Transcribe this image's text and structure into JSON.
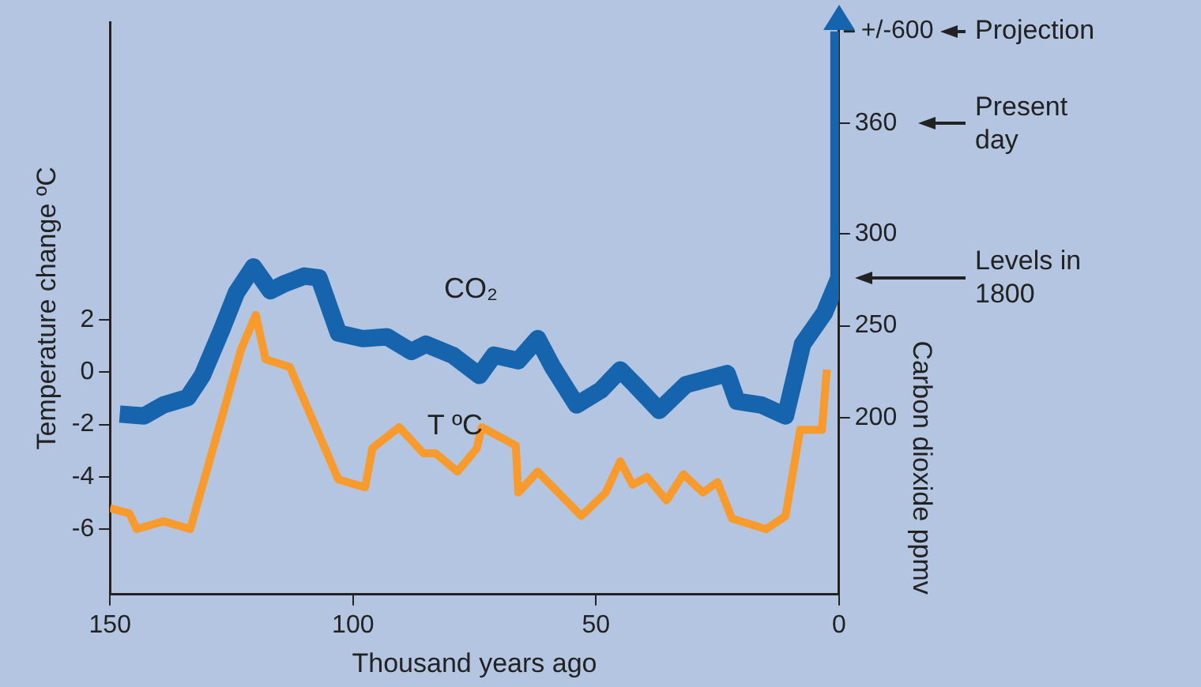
{
  "chart_data": {
    "type": "line",
    "xlabel": "Thousand years ago",
    "ylabel": "Temperature change ºC",
    "y2label": "Carbon dioxide ppmv",
    "xlim": [
      150,
      0
    ],
    "xticks": [
      150,
      100,
      50,
      0
    ],
    "ylim": [
      -8.5,
      13.4
    ],
    "yticks": [
      -6,
      -4,
      -2,
      0,
      2
    ],
    "y2lim": [
      104,
      415
    ],
    "y2ticks": [
      200,
      250,
      300,
      360
    ],
    "series": [
      {
        "name": "CO₂",
        "type": "line",
        "axis": "y2",
        "color": "#1764ae",
        "x": [
          148,
          143,
          139,
          134,
          131,
          127,
          124,
          120.5,
          117,
          114,
          110,
          107,
          103,
          98,
          93,
          88,
          85,
          79.5,
          74,
          71,
          66,
          62,
          59,
          54,
          49,
          45,
          42,
          37,
          31.5,
          23,
          21,
          16,
          11,
          7.5,
          3,
          0,
          0
        ],
        "values": [
          202,
          201,
          207,
          211,
          223,
          248,
          268,
          282,
          269,
          273,
          277,
          276,
          246,
          243,
          244,
          236,
          240,
          234,
          223,
          234,
          231,
          243,
          228,
          207,
          215,
          226,
          218,
          204,
          218,
          224,
          209,
          207,
          201,
          240,
          257,
          276,
          410
        ]
      },
      {
        "name": "T ºC",
        "type": "line",
        "axis": "y",
        "color": "#f89a2c",
        "x": [
          150,
          146,
          144.5,
          139,
          133.5,
          123,
          120,
          118,
          113,
          103,
          97.5,
          96,
          90.5,
          85.5,
          83,
          78.5,
          74.5,
          73.5,
          66.5,
          66,
          62,
          53,
          48,
          45,
          42.5,
          39.5,
          35.5,
          32,
          28,
          25,
          22,
          15,
          11,
          8,
          3.5,
          2.5
        ],
        "values": [
          -5.2,
          -5.4,
          -6.0,
          -5.7,
          -6.0,
          0.9,
          2.2,
          0.5,
          0.2,
          -4.1,
          -4.4,
          -2.9,
          -2.1,
          -3.1,
          -3.1,
          -3.8,
          -2.9,
          -2.1,
          -2.8,
          -4.6,
          -3.8,
          -5.5,
          -4.6,
          -3.4,
          -4.3,
          -4.0,
          -4.9,
          -3.9,
          -4.6,
          -4.2,
          -5.6,
          -6.0,
          -5.5,
          -2.2,
          -2.2,
          0.1
        ]
      }
    ],
    "legend": false,
    "annotations": [
      "+/-600",
      "Projection",
      "Present day",
      "Levels in 1800"
    ]
  }
}
